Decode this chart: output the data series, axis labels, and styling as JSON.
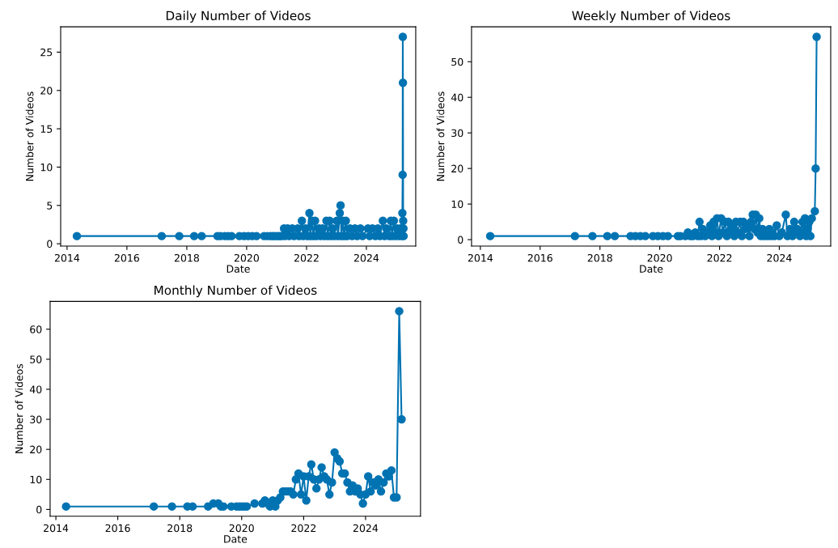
{
  "chart_data": [
    {
      "type": "line",
      "title": "Daily Number of Videos",
      "xlabel": "Date",
      "ylabel": "Number of Videos",
      "color": "#0173b2",
      "marker": "circle",
      "line_style": "solid",
      "grid": false,
      "legend": false,
      "xlim": [
        "2013-10-15",
        "2025-08-25"
      ],
      "ylim": [
        -0.3,
        28.3
      ],
      "xticks": [
        {
          "value": "2014",
          "label": "2014"
        },
        {
          "value": "2016",
          "label": "2016"
        },
        {
          "value": "2018",
          "label": "2018"
        },
        {
          "value": "2020",
          "label": "2020"
        },
        {
          "value": "2022",
          "label": "2022"
        },
        {
          "value": "2024",
          "label": "2024"
        }
      ],
      "yticks": [
        0,
        5,
        10,
        15,
        20,
        25
      ],
      "x": [
        "2014-05-01",
        "2017-03-01",
        "2017-10-01",
        "2018-04-01",
        "2018-07-01",
        "2019-01-10",
        "2019-02-15",
        "2019-04-10",
        "2019-05-20",
        "2019-07-01",
        "2019-10-05",
        "2019-12-01",
        "2020-01-20",
        "2020-03-10",
        "2020-05-01",
        "2020-08-01",
        "2020-09-10",
        "2020-10-20",
        "2020-11-15",
        "2020-12-10",
        "2021-01-10",
        "2021-02-05",
        "2021-03-01",
        "2021-04-01",
        "2021-04-10",
        "2021-05-15",
        "2021-06-01",
        "2021-07-10",
        "2021-08-01",
        "2021-09-15",
        "2021-10-01",
        "2021-11-05",
        "2021-11-20",
        "2021-12-20",
        "2022-01-10",
        "2022-02-05",
        "2022-02-15",
        "2022-03-10",
        "2022-03-25",
        "2022-04-15",
        "2022-05-01",
        "2022-06-01",
        "2022-06-20",
        "2022-07-15",
        "2022-08-05",
        "2022-09-01",
        "2022-09-15",
        "2022-10-10",
        "2022-10-25",
        "2022-11-15",
        "2022-12-05",
        "2023-01-05",
        "2023-01-20",
        "2023-02-10",
        "2023-02-20",
        "2023-03-01",
        "2023-03-20",
        "2023-04-05",
        "2023-04-25",
        "2023-05-10",
        "2023-06-15",
        "2023-07-10",
        "2023-08-15",
        "2023-09-10",
        "2023-10-20",
        "2023-11-15",
        "2024-01-20",
        "2024-02-10",
        "2024-03-15",
        "2024-04-20",
        "2024-05-20",
        "2024-06-15",
        "2024-07-20",
        "2024-08-10",
        "2024-09-01",
        "2024-10-05",
        "2024-10-25",
        "2024-11-10",
        "2024-12-01",
        "2024-12-20",
        "2025-01-10",
        "2025-02-01",
        "2025-02-20",
        "2025-03-10",
        "2025-03-15",
        "2025-03-18",
        "2025-03-20",
        "2025-03-22",
        "2025-03-25",
        "2025-03-28",
        "2025-03-30"
      ],
      "values": [
        1,
        1,
        1,
        1,
        1,
        1,
        1,
        1,
        1,
        1,
        1,
        1,
        1,
        1,
        1,
        1,
        1,
        1,
        1,
        1,
        1,
        1,
        1,
        2,
        1,
        2,
        1,
        2,
        1,
        2,
        1,
        3,
        1,
        2,
        1,
        4,
        1,
        3,
        1,
        3,
        1,
        2,
        1,
        2,
        1,
        3,
        1,
        3,
        1,
        2,
        1,
        3,
        1,
        4,
        5,
        1,
        3,
        1,
        3,
        1,
        2,
        1,
        2,
        1,
        2,
        1,
        2,
        1,
        2,
        1,
        2,
        1,
        3,
        1,
        2,
        1,
        3,
        1,
        3,
        1,
        2,
        1,
        2,
        1,
        4,
        9,
        27,
        21,
        3,
        2,
        1
      ]
    },
    {
      "type": "line",
      "title": "Weekly Number of Videos",
      "xlabel": "Date",
      "ylabel": "Number of Videos",
      "color": "#0173b2",
      "marker": "circle",
      "line_style": "solid",
      "grid": false,
      "legend": false,
      "xlim": [
        "2013-09-15",
        "2025-09-20"
      ],
      "ylim": [
        -1.8,
        59.8
      ],
      "xticks": [
        {
          "value": "2014",
          "label": "2014"
        },
        {
          "value": "2016",
          "label": "2016"
        },
        {
          "value": "2018",
          "label": "2018"
        },
        {
          "value": "2020",
          "label": "2020"
        },
        {
          "value": "2022",
          "label": "2022"
        },
        {
          "value": "2024",
          "label": "2024"
        }
      ],
      "yticks": [
        0,
        10,
        20,
        30,
        40,
        50
      ],
      "x": [
        "2014-05-01",
        "2017-03-01",
        "2017-10-01",
        "2018-04-01",
        "2018-07-01",
        "2019-01-10",
        "2019-03-10",
        "2019-05-10",
        "2019-07-10",
        "2019-10-10",
        "2019-12-10",
        "2020-02-10",
        "2020-04-10",
        "2020-08-10",
        "2020-09-10",
        "2020-11-10",
        "2020-12-10",
        "2021-01-10",
        "2021-02-10",
        "2021-03-10",
        "2021-04-10",
        "2021-05-01",
        "2021-05-20",
        "2021-06-10",
        "2021-07-10",
        "2021-08-10",
        "2021-09-10",
        "2021-10-01",
        "2021-10-20",
        "2021-11-10",
        "2021-12-01",
        "2021-12-20",
        "2022-01-20",
        "2022-02-10",
        "2022-03-10",
        "2022-04-01",
        "2022-04-20",
        "2022-05-10",
        "2022-06-10",
        "2022-07-01",
        "2022-07-20",
        "2022-08-10",
        "2022-09-10",
        "2022-10-01",
        "2022-10-20",
        "2022-11-10",
        "2022-12-10",
        "2023-01-01",
        "2023-01-20",
        "2023-02-10",
        "2023-03-01",
        "2023-03-20",
        "2023-04-10",
        "2023-05-01",
        "2023-05-20",
        "2023-06-10",
        "2023-07-01",
        "2023-07-20",
        "2023-08-10",
        "2023-09-01",
        "2023-09-20",
        "2023-10-10",
        "2023-11-01",
        "2023-12-01",
        "2024-01-01",
        "2024-02-01",
        "2024-03-20",
        "2024-04-10",
        "2024-05-10",
        "2024-06-10",
        "2024-07-01",
        "2024-07-20",
        "2024-08-10",
        "2024-09-10",
        "2024-10-10",
        "2024-10-25",
        "2024-11-10",
        "2024-11-25",
        "2024-12-10",
        "2025-01-01",
        "2025-01-15",
        "2025-02-01",
        "2025-03-10",
        "2025-03-20",
        "2025-04-01"
      ],
      "values": [
        1,
        1,
        1,
        1,
        1,
        1,
        1,
        1,
        1,
        1,
        1,
        1,
        1,
        1,
        1,
        1,
        2,
        1,
        1,
        2,
        1,
        5,
        1,
        3,
        1,
        2,
        4,
        1,
        5,
        2,
        6,
        1,
        6,
        2,
        5,
        1,
        5,
        2,
        4,
        1,
        5,
        2,
        5,
        1,
        5,
        3,
        4,
        1,
        5,
        7,
        3,
        7,
        2,
        6,
        1,
        3,
        1,
        2,
        1,
        3,
        1,
        2,
        1,
        4,
        1,
        2,
        7,
        1,
        3,
        1,
        5,
        2,
        3,
        1,
        5,
        2,
        6,
        1,
        3,
        5,
        1,
        6,
        8,
        20,
        57
      ]
    },
    {
      "type": "line",
      "title": "Monthly Number of Videos",
      "xlabel": "Date",
      "ylabel": "Number of Videos",
      "color": "#0173b2",
      "marker": "circle",
      "line_style": "solid",
      "grid": false,
      "legend": false,
      "xlim": [
        "2013-10-25",
        "2025-10-10"
      ],
      "ylim": [
        -2.25,
        69.25
      ],
      "xticks": [
        {
          "value": "2014",
          "label": "2014"
        },
        {
          "value": "2016",
          "label": "2016"
        },
        {
          "value": "2018",
          "label": "2018"
        },
        {
          "value": "2020",
          "label": "2020"
        },
        {
          "value": "2022",
          "label": "2022"
        },
        {
          "value": "2024",
          "label": "2024"
        }
      ],
      "yticks": [
        0,
        10,
        20,
        30,
        40,
        50,
        60
      ],
      "x": [
        "2014-05",
        "2017-03",
        "2017-10",
        "2018-04",
        "2018-06",
        "2018-12",
        "2019-02",
        "2019-04",
        "2019-05",
        "2019-06",
        "2019-09",
        "2019-11",
        "2019-12",
        "2020-01",
        "2020-02",
        "2020-03",
        "2020-06",
        "2020-09",
        "2020-10",
        "2020-11",
        "2020-12",
        "2021-01",
        "2021-02",
        "2021-03",
        "2021-04",
        "2021-05",
        "2021-06",
        "2021-07",
        "2021-08",
        "2021-09",
        "2021-10",
        "2021-11",
        "2021-12",
        "2022-01",
        "2022-02",
        "2022-03",
        "2022-04",
        "2022-05",
        "2022-06",
        "2022-07",
        "2022-08",
        "2022-09",
        "2022-10",
        "2022-11",
        "2022-12",
        "2023-01",
        "2023-02",
        "2023-03",
        "2023-04",
        "2023-05",
        "2023-06",
        "2023-07",
        "2023-08",
        "2023-09",
        "2023-10",
        "2023-11",
        "2023-12",
        "2024-01",
        "2024-02",
        "2024-03",
        "2024-04",
        "2024-05",
        "2024-06",
        "2024-07",
        "2024-08",
        "2024-09",
        "2024-10",
        "2024-11",
        "2024-12",
        "2025-01",
        "2025-02",
        "2025-03"
      ],
      "values": [
        1,
        1,
        1,
        1,
        1,
        1,
        2,
        2,
        1,
        1,
        1,
        1,
        1,
        1,
        1,
        1,
        2,
        2,
        3,
        2,
        1,
        3,
        1,
        3,
        4,
        6,
        6,
        6,
        6,
        5,
        10,
        12,
        5,
        11,
        3,
        11,
        15,
        10,
        7,
        10,
        14,
        11,
        10,
        5,
        9,
        19,
        17,
        16,
        12,
        12,
        9,
        6,
        8,
        6,
        7,
        5,
        2,
        5,
        11,
        6,
        9,
        8,
        10,
        6,
        9,
        12,
        11,
        13,
        4,
        4,
        66,
        30
      ]
    }
  ]
}
